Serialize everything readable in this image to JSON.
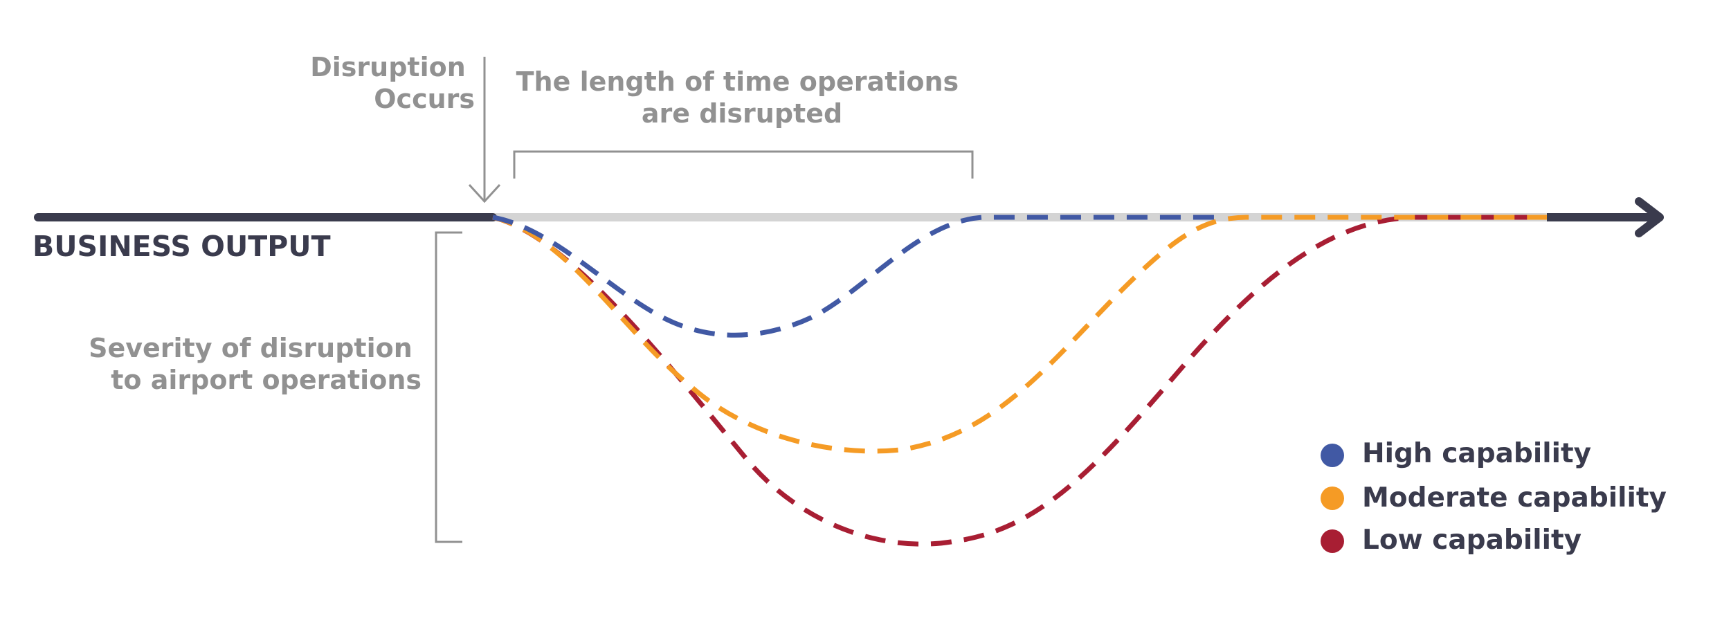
{
  "annotations": {
    "disruption_occurs": [
      "Disruption",
      "Occurs"
    ],
    "length_of_time": [
      "The length of time operations",
      "are disrupted"
    ],
    "severity": [
      "Severity of disruption",
      "to airport operations"
    ],
    "axis_label": "BUSINESS OUTPUT"
  },
  "legend": [
    {
      "label": "High capability",
      "color": "#4159a4"
    },
    {
      "label": "Moderate capability",
      "color": "#f59b25"
    },
    {
      "label": "Low capability",
      "color": "#a81e33"
    }
  ],
  "colors": {
    "axis": "#3a3b4d",
    "baseline": "#d4d4d4",
    "annotation": "#919191"
  }
}
